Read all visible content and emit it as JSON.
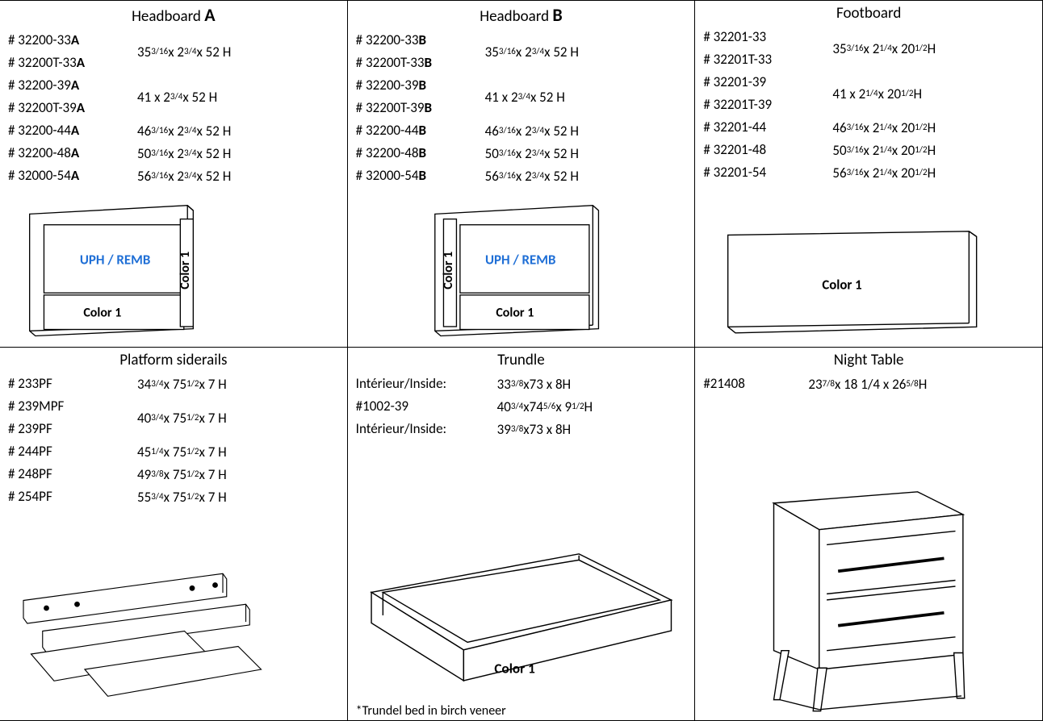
{
  "cells": {
    "headboardA": {
      "title_prefix": "Headboard ",
      "title_bold": "A",
      "skus": [
        "# 32200-33<b>A</b>",
        "# 32200T-33<b>A</b>",
        "# 32200-39<b>A</b>",
        "# 32200T-39<b>A</b>",
        "# 32200-44<b>A</b>",
        "# 32200-48<b>A</b>",
        "# 32000-54<b>A</b>"
      ],
      "dims": [
        {
          "span": 2,
          "html": "35<sup>3/16</sup> x 2<sup>3/4</sup> x 52 H"
        },
        {
          "span": 2,
          "html": "41 x 2<sup>3/4</sup> x 52 H"
        },
        {
          "span": 1,
          "html": "46 <sup>3/16</sup> x 2<sup>3/4</sup> x 52 H"
        },
        {
          "span": 1,
          "html": "50 <sup>3/16</sup> x 2<sup>3/4</sup> x 52 H"
        },
        {
          "span": 1,
          "html": "56 <sup>3/16</sup> x 2<sup>3/4</sup> x 52 H"
        }
      ],
      "uph_label": "UPH / REMB",
      "color_vert": "Color 1",
      "color_bottom": "Color 1"
    },
    "headboardB": {
      "title_prefix": "Headboard ",
      "title_bold": "B",
      "skus": [
        "# 32200-33<b>B</b>",
        "# 32200T-33<b>B</b>",
        "# 32200-39<b>B</b>",
        "# 32200T-39<b>B</b>",
        "# 32200-44<b>B</b>",
        "# 32200-48<b>B</b>",
        "# 32000-54<b>B</b>"
      ],
      "dims": [
        {
          "span": 2,
          "html": "35<sup>3/16</sup> x 2<sup>3/4</sup> x 52 H"
        },
        {
          "span": 2,
          "html": "41 x 2<sup>3/4</sup> x 52 H"
        },
        {
          "span": 1,
          "html": "46 <sup>3/16</sup> x 2<sup>3/4</sup> x 52 H"
        },
        {
          "span": 1,
          "html": "50 <sup>3/16</sup> x 2<sup>3/4</sup> x 52 H"
        },
        {
          "span": 1,
          "html": "56 <sup>3/16</sup> x 2<sup>3/4</sup> x 52 H"
        }
      ],
      "uph_label": "UPH / REMB",
      "color_vert": "Color 1",
      "color_bottom": "Color 1"
    },
    "footboard": {
      "title": "Footboard",
      "skus": [
        "# 32201-33",
        "# 32201T-33",
        "# 32201-39",
        "# 32201T-39",
        "# 32201-44",
        "# 32201-48",
        "# 32201-54"
      ],
      "dims": [
        {
          "span": 2,
          "html": "35<sup>3/16</sup> x 2<sup>1/4</sup> x 20<sup>1/2</sup> H"
        },
        {
          "span": 2,
          "html": "41 x 2<sup>1/4</sup> x 20<sup>1/2</sup> H"
        },
        {
          "span": 1,
          "html": "46 <sup>3/16</sup> x 2<sup>1/4</sup> x 20<sup>1/2</sup> H"
        },
        {
          "span": 1,
          "html": "50 <sup>3/16</sup> x 2<sup>1/4</sup> x 20<sup>1/2</sup> H"
        },
        {
          "span": 1,
          "html": "56 <sup>3/16</sup> x 2<sup>1/4</sup> x 20<sup>1/2</sup> H"
        }
      ],
      "color_label": "Color 1"
    },
    "siderails": {
      "title": "Platform siderails",
      "skus": [
        "# 233PF",
        "# 239MPF",
        "# 239PF",
        "# 244PF",
        "# 248PF",
        "# 254PF"
      ],
      "dims": [
        {
          "span": 1,
          "html": "34<sup>3/4</sup> x 75<sup>1/2</sup> x  7 H"
        },
        {
          "span": 2,
          "html": "40<sup>3/4</sup> x 75<sup>1/2</sup>x  7 H"
        },
        {
          "span": 1,
          "html": "45 <sup>1/4</sup> x 75<sup>1/2</sup> x  7 H"
        },
        {
          "span": 1,
          "html": "49 <sup>3/8</sup>  x 75<sup>1/2</sup> x  7 H"
        },
        {
          "span": 1,
          "html": "55<sup>3/4</sup> x 75<sup>1/2</sup> x  7 H"
        }
      ]
    },
    "trundle": {
      "title": "Trundle",
      "rows": [
        {
          "label": "Intérieur/Inside:",
          "dim": "33<sup>3/8</sup> x73 x 8H"
        },
        {
          "label": "#1002-39",
          "dim": "40<sup>3/4</sup> x74<sup>5/6</sup> x  9<sup>1/2</sup> H"
        },
        {
          "label": "Intérieur/Inside:",
          "dim": "39<sup>3/8</sup> x73 x 8H"
        }
      ],
      "color_label": "Color 1",
      "footnote": "*Trundel bed in birch veneer"
    },
    "nighttable": {
      "title": "Night Table",
      "sku": "#21408",
      "dim": "23 <sup>7/8</sup> x 18 1/4 x 26 <sup>5/8</sup>H"
    }
  }
}
